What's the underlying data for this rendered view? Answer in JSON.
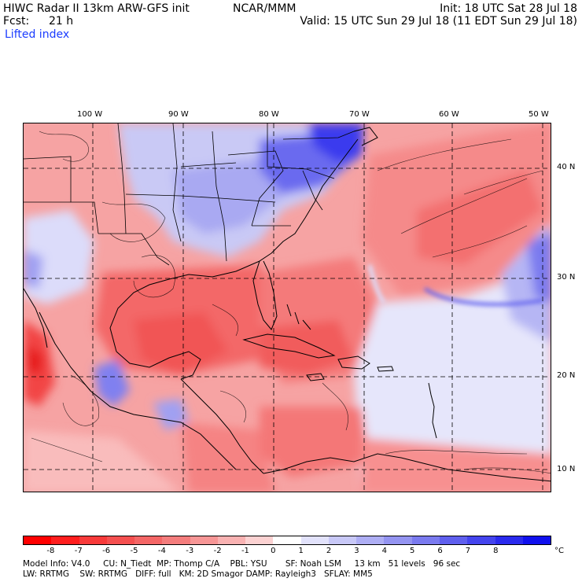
{
  "header": {
    "title": "HIWC Radar II 13km ARW-GFS init",
    "org": "NCAR/MMM",
    "init": "Init: 18 UTC Sat 28 Jul 18",
    "fcst_label": "Fcst:",
    "fcst_value": "21 h",
    "valid": "Valid: 15 UTC Sun 29 Jul 18 (11 EDT Sun 29 Jul 18)",
    "field": "Lifted index"
  },
  "map": {
    "lon_labels": [
      "100 W",
      "90 W",
      "80 W",
      "70 W",
      "60 W",
      "50 W"
    ],
    "lat_labels": [
      "40 N",
      "30 N",
      "20 N",
      "10 N"
    ],
    "colors": {
      "deep_red": "#ff1e1e",
      "red": "#f55a5a",
      "light_red": "#f78c8c",
      "pale_red": "#fbc6c6",
      "white": "#ffffff",
      "pale_blue": "#dcdcfa",
      "blue": "#8f8ff5",
      "deep_blue": "#2828ee"
    }
  },
  "colorbar": {
    "labels": [
      "-8",
      "-7",
      "-6",
      "-5",
      "-4",
      "-3",
      "-2",
      "-1",
      "0",
      "1",
      "2",
      "3",
      "4",
      "5",
      "6",
      "7",
      "8"
    ],
    "unit": "°C",
    "colors": [
      "#ff0000",
      "#ff1e1e",
      "#f83a3a",
      "#f55050",
      "#f46666",
      "#f47d7d",
      "#f79696",
      "#f9b2b2",
      "#fcd2d2",
      "#ffffff",
      "#e2e2fb",
      "#c8c8f7",
      "#aeaef4",
      "#9494f1",
      "#7a7aef",
      "#5f5fee",
      "#4444ee",
      "#2a2aee",
      "#1010ee"
    ]
  },
  "footer": {
    "line1": "Model Info: V4.0     CU: N_Tiedt  MP: Thomp C/A    PBL: YSU       SF: Noah LSM     13 km   51 levels   96 sec",
    "line2": "LW: RRTMG    SW: RRTMG   DIFF: full   KM: 2D Smagor DAMP: Rayleigh3   SFLAY: MM5"
  }
}
